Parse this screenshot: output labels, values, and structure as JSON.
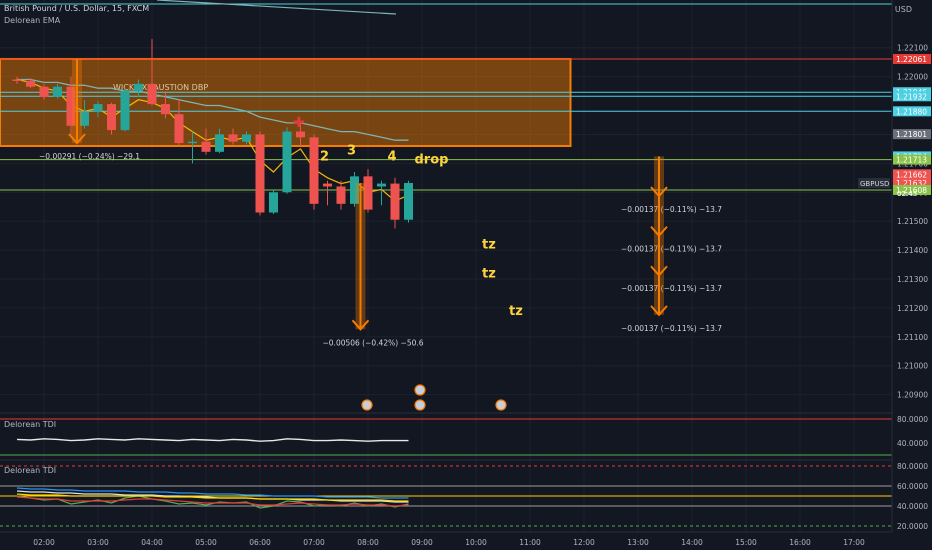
{
  "header": {
    "symbol_line": "British Pound / U.S. Dollar, 15, FXCM",
    "indicator": "Delorean EMA",
    "currency": "USD"
  },
  "panels": {
    "tdi1": {
      "label": "Delorean TDI",
      "levels": [
        "80.0000",
        "40.0000"
      ]
    },
    "tdi2": {
      "label": "Delorean TDI",
      "levels": [
        "80.0000",
        "60.0000",
        "40.0000",
        "20.0000"
      ]
    }
  },
  "colors": {
    "bg": "#131722",
    "grid": "#1e222d",
    "bull": "#26a69a",
    "bear": "#ef5350",
    "zone": "#f57c00",
    "ema_fast": "#f5b700",
    "ema_slow": "#7fb3b0",
    "cyan": "#4dd0e1",
    "green": "#8bc34a",
    "red": "#e53935",
    "gray": "#6b6f7a",
    "label_yellow": "#ffd43b"
  },
  "chart_data": {
    "type": "candlestick",
    "symbol": "GBPUSD",
    "timeframe": "15",
    "x_ticks": [
      "02:00",
      "03:00",
      "04:00",
      "05:00",
      "06:00",
      "07:00",
      "08:00",
      "09:00",
      "10:00",
      "11:00",
      "12:00",
      "13:00",
      "14:00",
      "15:00",
      "16:00",
      "17:00"
    ],
    "y_ticks": [
      1.221,
      1.22,
      1.218,
      1.217,
      1.216,
      1.215,
      1.214,
      1.213,
      1.212,
      1.211,
      1.21,
      1.209
    ],
    "y_tick_labels": [
      "1.22100",
      "1.22000",
      "1.21800",
      "1.21700",
      "1.21600",
      "1.21500",
      "1.21400",
      "1.21300",
      "1.21200",
      "1.21100",
      "1.21000",
      "1.20900"
    ],
    "ylim": [
      1.2084,
      1.22265
    ],
    "price_tags": [
      {
        "label": "1.22061",
        "value": 1.22061,
        "color": "#e53935"
      },
      {
        "label": "1.21946",
        "value": 1.21946,
        "color": "#4dd0e1"
      },
      {
        "label": "1.21932",
        "value": 1.21932,
        "color": "#4dd0e1"
      },
      {
        "label": "1.21880",
        "value": 1.2188,
        "color": "#4dd0e1"
      },
      {
        "label": "1.21801",
        "value": 1.21801,
        "color": "#6b6f7a"
      },
      {
        "label": "1.21724",
        "value": 1.21724,
        "color": "#4dd0e1"
      },
      {
        "label": "1.21713",
        "value": 1.21713,
        "color": "#8bc34a"
      },
      {
        "label": "1.21662",
        "value": 1.21662,
        "color": "#ef5350"
      },
      {
        "label": "1.21632",
        "value": 1.21632,
        "color": "#ef5350"
      },
      {
        "label": "1.21608",
        "value": 1.21608,
        "color": "#8bc34a"
      }
    ],
    "symbol_tag": "GBPUSD",
    "countdown": "02:45",
    "zone": {
      "label": "WICK EXHAUSTION DBP",
      "top": 1.22061,
      "bottom": 1.2176,
      "start": "01:30",
      "end": "11:45"
    },
    "candles": [
      {
        "t": "01:30",
        "o": 1.2199,
        "h": 1.22,
        "l": 1.21975,
        "c": 1.21985
      },
      {
        "t": "01:45",
        "o": 1.21985,
        "h": 1.21995,
        "l": 1.2196,
        "c": 1.21965
      },
      {
        "t": "02:00",
        "o": 1.21965,
        "h": 1.21975,
        "l": 1.2192,
        "c": 1.2193
      },
      {
        "t": "02:15",
        "o": 1.2193,
        "h": 1.21975,
        "l": 1.21925,
        "c": 1.21965
      },
      {
        "t": "02:30",
        "o": 1.21965,
        "h": 1.22,
        "l": 1.2179,
        "c": 1.2183
      },
      {
        "t": "02:45",
        "o": 1.2183,
        "h": 1.2192,
        "l": 1.2182,
        "c": 1.2188
      },
      {
        "t": "03:00",
        "o": 1.2188,
        "h": 1.21915,
        "l": 1.2186,
        "c": 1.21905
      },
      {
        "t": "03:15",
        "o": 1.21905,
        "h": 1.2191,
        "l": 1.218,
        "c": 1.21815
      },
      {
        "t": "03:30",
        "o": 1.21815,
        "h": 1.2196,
        "l": 1.2181,
        "c": 1.2195
      },
      {
        "t": "03:45",
        "o": 1.2195,
        "h": 1.2199,
        "l": 1.2193,
        "c": 1.21975
      },
      {
        "t": "04:00",
        "o": 1.21975,
        "h": 1.2213,
        "l": 1.219,
        "c": 1.21905
      },
      {
        "t": "04:15",
        "o": 1.21905,
        "h": 1.2195,
        "l": 1.21855,
        "c": 1.2187
      },
      {
        "t": "04:30",
        "o": 1.2187,
        "h": 1.2192,
        "l": 1.2176,
        "c": 1.2177
      },
      {
        "t": "04:45",
        "o": 1.2177,
        "h": 1.2181,
        "l": 1.217,
        "c": 1.21775
      },
      {
        "t": "05:00",
        "o": 1.21775,
        "h": 1.2182,
        "l": 1.2173,
        "c": 1.2174
      },
      {
        "t": "05:15",
        "o": 1.2174,
        "h": 1.2182,
        "l": 1.21735,
        "c": 1.218
      },
      {
        "t": "05:30",
        "o": 1.218,
        "h": 1.2182,
        "l": 1.21765,
        "c": 1.21775
      },
      {
        "t": "05:45",
        "o": 1.21775,
        "h": 1.2181,
        "l": 1.21765,
        "c": 1.218
      },
      {
        "t": "06:00",
        "o": 1.218,
        "h": 1.2181,
        "l": 1.2152,
        "c": 1.2153
      },
      {
        "t": "06:15",
        "o": 1.2153,
        "h": 1.2161,
        "l": 1.21525,
        "c": 1.216
      },
      {
        "t": "06:30",
        "o": 1.216,
        "h": 1.21825,
        "l": 1.21595,
        "c": 1.2181
      },
      {
        "t": "06:45",
        "o": 1.2181,
        "h": 1.2184,
        "l": 1.2176,
        "c": 1.2179
      },
      {
        "t": "07:00",
        "o": 1.2179,
        "h": 1.218,
        "l": 1.2154,
        "c": 1.2156
      },
      {
        "t": "07:15",
        "o": 1.2163,
        "h": 1.2164,
        "l": 1.21555,
        "c": 1.2162
      },
      {
        "t": "07:30",
        "o": 1.2162,
        "h": 1.2164,
        "l": 1.2154,
        "c": 1.2156
      },
      {
        "t": "07:45",
        "o": 1.2156,
        "h": 1.2167,
        "l": 1.2155,
        "c": 1.21655
      },
      {
        "t": "08:00",
        "o": 1.21655,
        "h": 1.2168,
        "l": 1.2153,
        "c": 1.2154
      },
      {
        "t": "08:15",
        "o": 1.2162,
        "h": 1.2164,
        "l": 1.21555,
        "c": 1.2163
      },
      {
        "t": "08:30",
        "o": 1.2163,
        "h": 1.2165,
        "l": 1.21475,
        "c": 1.21505
      },
      {
        "t": "08:45",
        "o": 1.21505,
        "h": 1.2164,
        "l": 1.21495,
        "c": 1.21632
      }
    ],
    "horizontal_lines": [
      {
        "value": 1.22061,
        "color": "#e53935"
      },
      {
        "value": 1.21946,
        "color": "#4dd0e1"
      },
      {
        "value": 1.21932,
        "color": "#4dd0e1"
      },
      {
        "value": 1.2188,
        "color": "#4dd0e1"
      },
      {
        "value": 1.21713,
        "color": "#8bc34a"
      },
      {
        "value": 1.21608,
        "color": "#8bc34a"
      }
    ],
    "ema_fast": [
      1.2199,
      1.2198,
      1.2196,
      1.2195,
      1.219,
      1.2188,
      1.2189,
      1.2186,
      1.2189,
      1.2192,
      1.2191,
      1.2189,
      1.2184,
      1.2181,
      1.2178,
      1.2179,
      1.2178,
      1.2179,
      1.2171,
      1.2167,
      1.2172,
      1.2175,
      1.2168,
      1.2165,
      1.2163,
      1.2164,
      1.216,
      1.2161,
      1.2157,
      1.2159
    ],
    "ema_slow": [
      1.2199,
      1.2199,
      1.2198,
      1.2198,
      1.2197,
      1.2197,
      1.2196,
      1.2196,
      1.2195,
      1.2195,
      1.2194,
      1.2193,
      1.2192,
      1.2191,
      1.219,
      1.219,
      1.2189,
      1.2188,
      1.2186,
      1.2185,
      1.2184,
      1.2184,
      1.2183,
      1.2182,
      1.2181,
      1.2181,
      1.218,
      1.2179,
      1.2178,
      1.2178
    ],
    "annotations": [
      {
        "text": "2",
        "t": "07:00",
        "y": 1.2171
      },
      {
        "text": "3",
        "t": "07:30",
        "y": 1.2173
      },
      {
        "text": "4",
        "t": "08:15",
        "y": 1.2171
      },
      {
        "text": "drop",
        "t": "08:45",
        "y": 1.217
      },
      {
        "text": "tz",
        "t": "10:00",
        "y": 1.21405
      },
      {
        "text": "tz",
        "t": "10:00",
        "y": 1.21305
      },
      {
        "text": "tz",
        "t": "10:30",
        "y": 1.21175
      }
    ],
    "measures": [
      {
        "text": "−0.00291 (−0.24%) −29.1",
        "t_from": "02:30",
        "from": 1.22061,
        "to": 1.2177
      },
      {
        "text": "−0.00506 (−0.42%) −50.6",
        "t_from": "07:45",
        "from": 1.21632,
        "to": 1.21126
      },
      {
        "text": "−0.00137 (−0.11%) −13.7",
        "t_from": "13:30",
        "from": 1.21724,
        "to": 1.21587
      },
      {
        "text": "−0.00137 (−0.11%) −13.7",
        "t_from": "13:30",
        "from": 1.21587,
        "to": 1.2145
      },
      {
        "text": "−0.00137 (−0.11%) −13.7",
        "t_from": "13:30",
        "from": 1.2145,
        "to": 1.21313
      },
      {
        "text": "−0.00137 (−0.11%) −13.7",
        "t_from": "13:30",
        "from": 1.21313,
        "to": 1.21176
      }
    ],
    "events": [
      {
        "t": "08:30",
        "row": 2
      },
      {
        "t": "09:00",
        "row": 1
      },
      {
        "t": "09:00",
        "row": 2
      },
      {
        "t": "10:30",
        "row": 2
      }
    ],
    "tdi1_line": [
      46,
      45,
      47,
      46,
      44,
      45,
      47,
      46,
      45,
      47,
      46,
      45,
      44,
      46,
      45,
      44,
      46,
      45,
      43,
      44,
      47,
      46,
      44,
      44,
      45,
      44,
      43,
      44,
      44,
      44
    ],
    "tdi2_series": [
      {
        "name": "",
        "color": "#e0e0e0",
        "values": [
          55,
          54,
          54,
          53,
          53,
          52,
          52,
          52,
          51,
          51,
          51,
          50,
          50,
          49,
          49,
          48,
          48,
          48,
          47,
          47,
          47,
          46,
          46,
          46,
          45,
          45,
          45,
          45,
          44,
          44
        ]
      },
      {
        "name": "",
        "color": "#4caf50",
        "values": [
          50,
          48,
          46,
          47,
          42,
          44,
          46,
          43,
          48,
          50,
          47,
          45,
          42,
          43,
          41,
          44,
          43,
          44,
          38,
          40,
          45,
          44,
          40,
          41,
          40,
          43,
          40,
          42,
          39,
          42
        ]
      },
      {
        "name": "",
        "color": "#e53935",
        "values": [
          49,
          48,
          47,
          47,
          45,
          45,
          45,
          45,
          46,
          47,
          47,
          46,
          45,
          44,
          43,
          43,
          43,
          43,
          41,
          41,
          42,
          43,
          42,
          41,
          41,
          42,
          41,
          41,
          40,
          41
        ]
      },
      {
        "name": "",
        "color": "#2196f3",
        "values": [
          58,
          57,
          57,
          56,
          56,
          55,
          55,
          55,
          55,
          54,
          54,
          54,
          53,
          53,
          52,
          52,
          52,
          51,
          51,
          50,
          50,
          50,
          50,
          49,
          49,
          49,
          49,
          48,
          48,
          48
        ]
      },
      {
        "name": "",
        "color": "#ffd600",
        "values": [
          52,
          51,
          51,
          51,
          50,
          50,
          50,
          50,
          50,
          50,
          50,
          49,
          49,
          49,
          48,
          48,
          48,
          48,
          47,
          47,
          47,
          47,
          47,
          46,
          46,
          46,
          46,
          46,
          45,
          45
        ]
      }
    ]
  }
}
